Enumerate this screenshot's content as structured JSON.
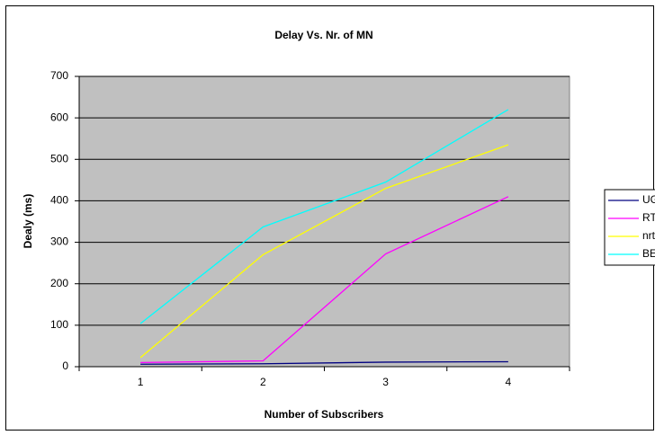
{
  "chart_data": {
    "type": "line",
    "title": "Delay Vs. Nr. of MN",
    "xlabel": "Number of Subscribers",
    "ylabel": "Dealy (ms)",
    "categories": [
      "1",
      "2",
      "3",
      "4"
    ],
    "series": [
      {
        "name": "UGS",
        "color": "#000080",
        "values": [
          6,
          7,
          11,
          12
        ]
      },
      {
        "name": "RTPS",
        "color": "#ff00ff",
        "values": [
          10,
          14,
          272,
          410
        ]
      },
      {
        "name": "nrtPS",
        "color": "#ffff00",
        "values": [
          22,
          270,
          430,
          535
        ]
      },
      {
        "name": "BE",
        "color": "#00ffff",
        "values": [
          104,
          337,
          445,
          620
        ]
      }
    ],
    "ylim": [
      0,
      700
    ],
    "yticks": [
      0,
      100,
      200,
      300,
      400,
      500,
      600,
      700
    ],
    "grid": true,
    "legend": "right"
  }
}
